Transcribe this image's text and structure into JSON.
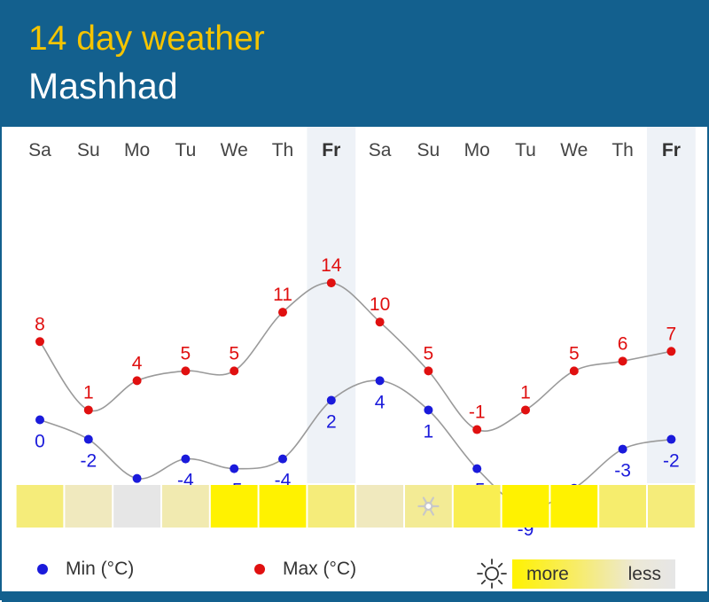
{
  "header": {
    "title": "14 day weather",
    "city": "Mashhad"
  },
  "legend": {
    "min_label": "Min (°C)",
    "max_label": "Max (°C)",
    "sun_more": "more",
    "sun_less": "less"
  },
  "colors": {
    "header_bg": "#13608e",
    "title": "#f5c400",
    "min": "#1a1adb",
    "max": "#e01010",
    "highlight_col": "#eef2f7"
  },
  "chart_data": {
    "type": "line",
    "title": "14 day weather",
    "categories": [
      "Sa",
      "Su",
      "Mo",
      "Tu",
      "We",
      "Th",
      "Fr",
      "Sa",
      "Su",
      "Mo",
      "Tu",
      "We",
      "Th",
      "Fr"
    ],
    "highlighted_days": [
      6,
      13
    ],
    "series": [
      {
        "name": "Max (°C)",
        "values": [
          8,
          1,
          4,
          5,
          5,
          11,
          14,
          10,
          5,
          -1,
          1,
          5,
          6,
          7
        ]
      },
      {
        "name": "Min (°C)",
        "values": [
          0,
          -2,
          -6,
          -4,
          -5,
          -4,
          2,
          4,
          1,
          -5,
          -9,
          -7,
          -3,
          -2
        ]
      }
    ],
    "sunshine_levels": [
      0.55,
      0.3,
      0.0,
      0.35,
      1.0,
      1.0,
      0.55,
      0.3,
      0.45,
      0.7,
      1.0,
      1.0,
      0.6,
      0.55
    ],
    "snow_icon_days": [
      8
    ],
    "grid": false,
    "legend_position": "bottom"
  }
}
